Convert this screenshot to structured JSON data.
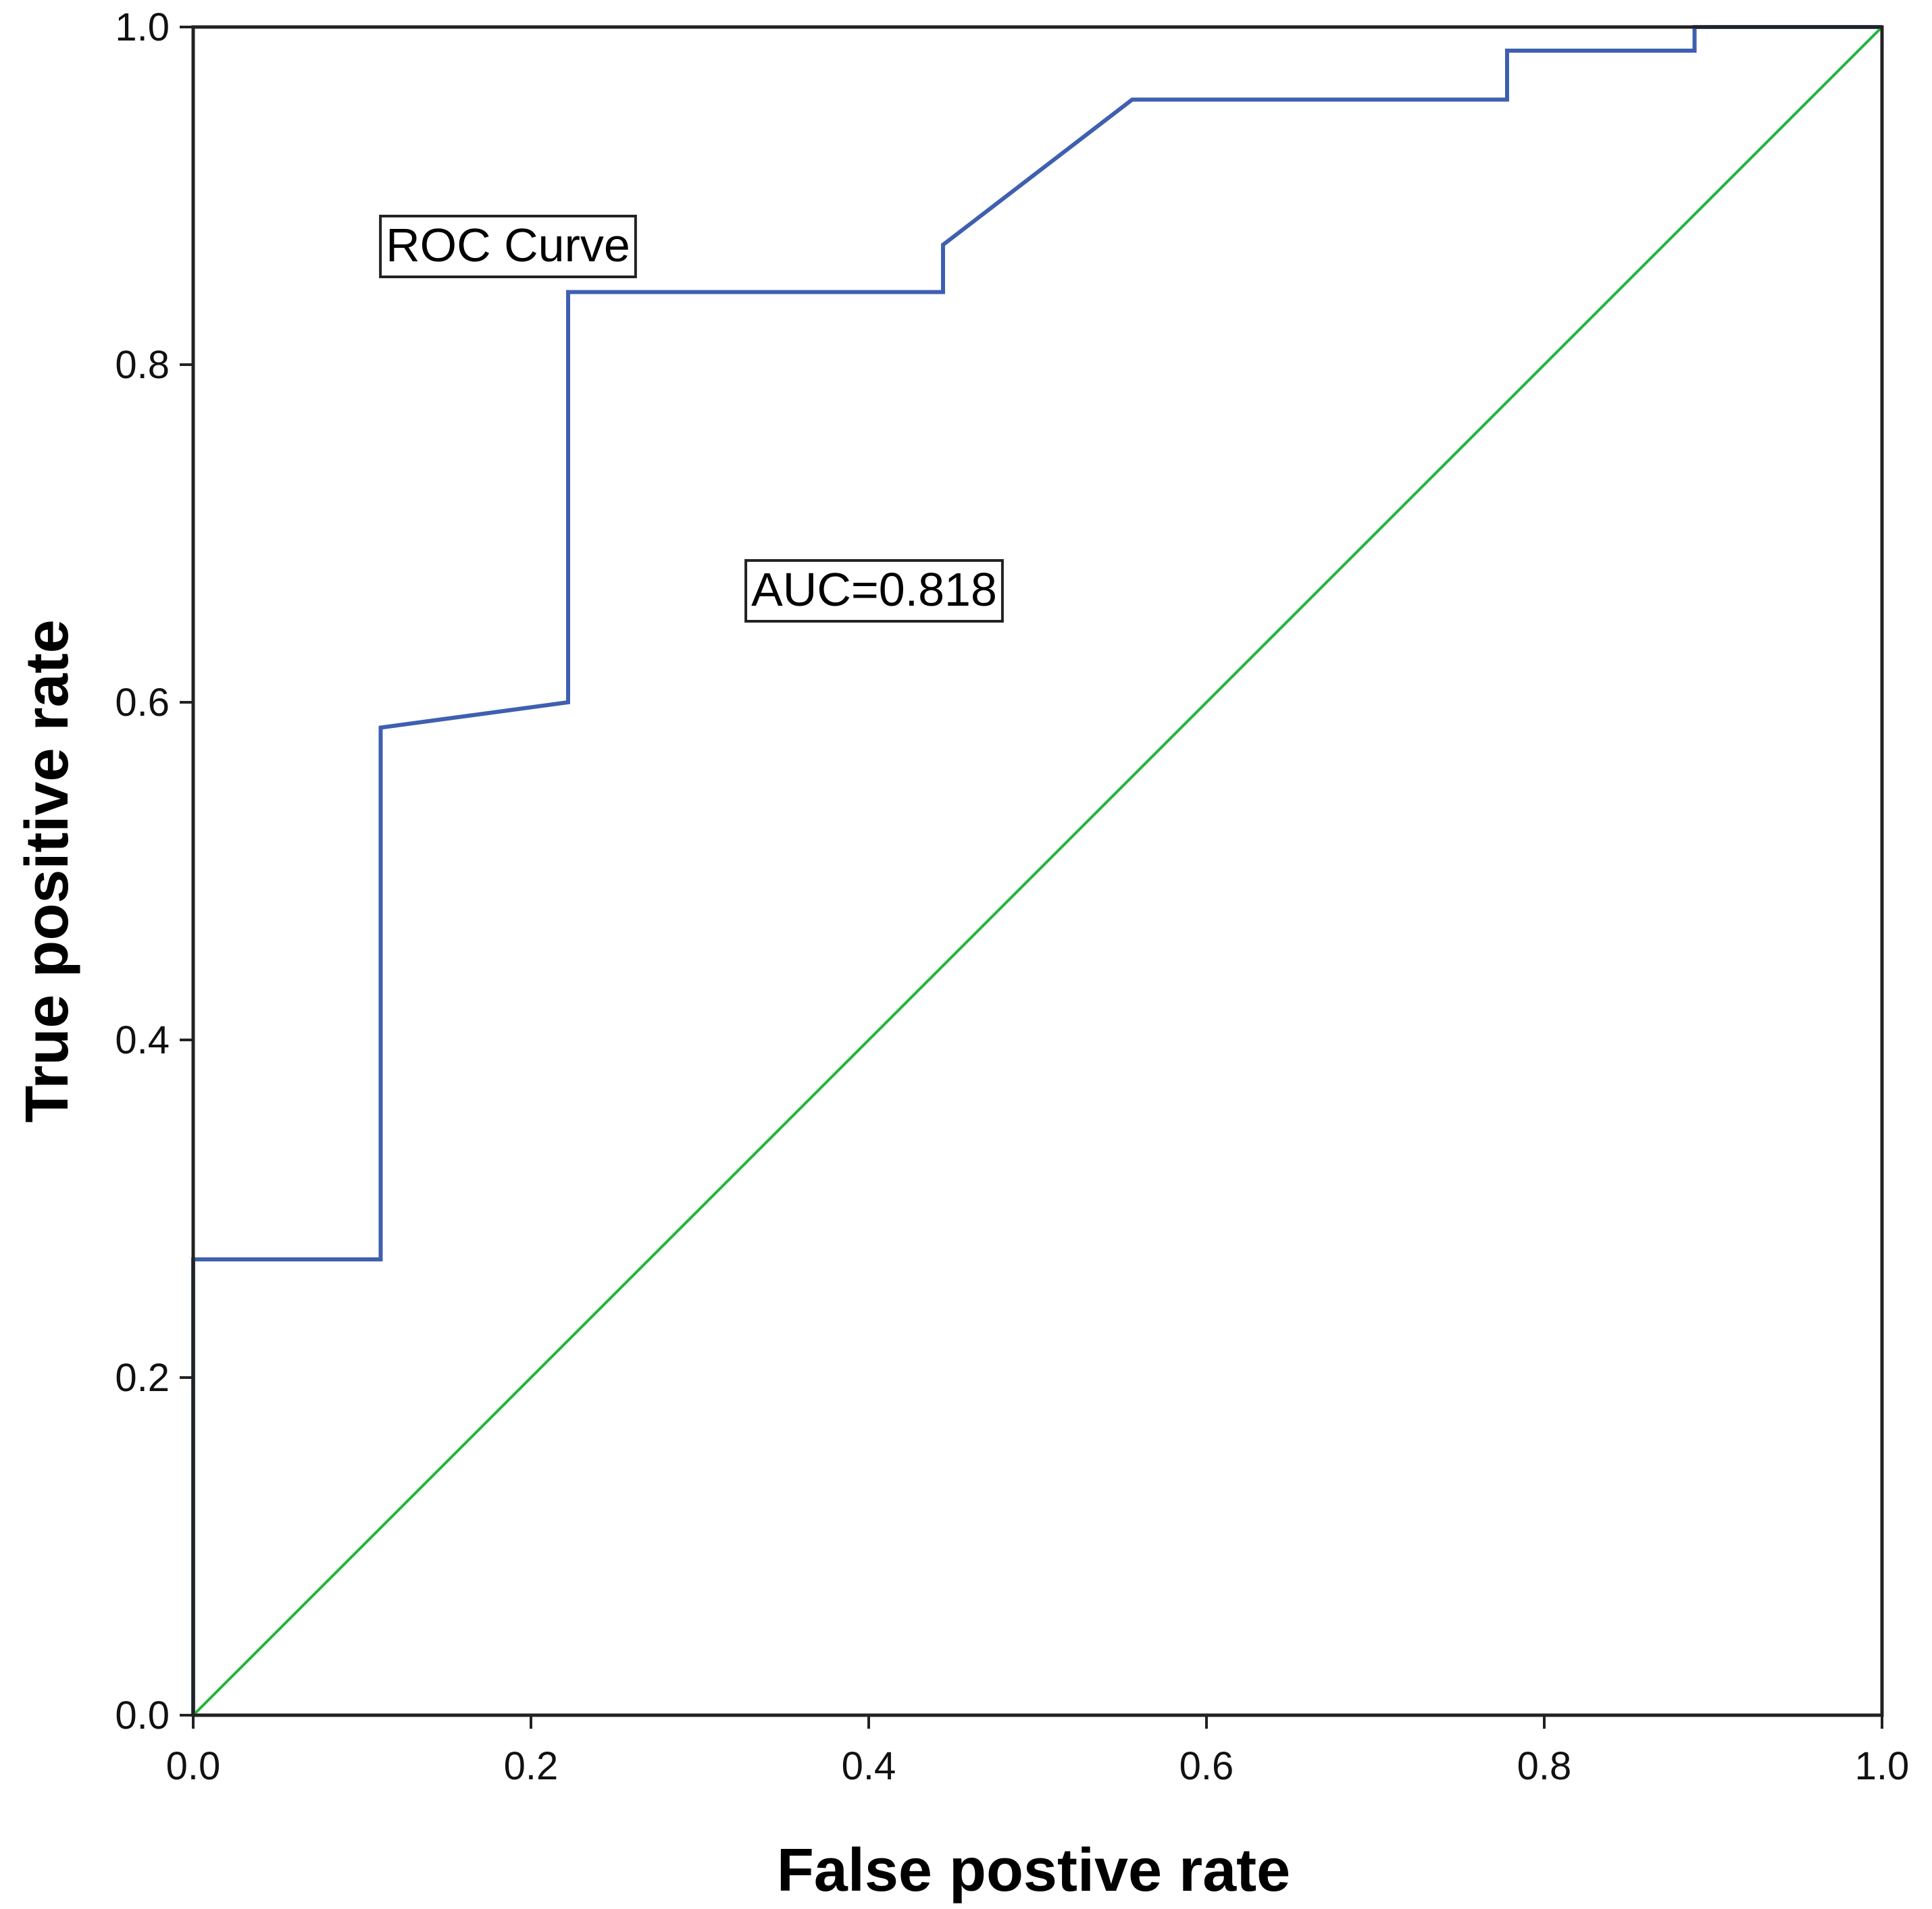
{
  "chart_data": {
    "type": "line",
    "title": "",
    "xlabel": "False postive rate",
    "ylabel": "True positive rate",
    "xlim": [
      0,
      1
    ],
    "ylim": [
      0,
      1
    ],
    "xticks": [
      "0.0",
      "0.2",
      "0.4",
      "0.6",
      "0.8",
      "1.0"
    ],
    "yticks": [
      "0.0",
      "0.2",
      "0.4",
      "0.6",
      "0.8",
      "1.0"
    ],
    "grid": false,
    "legend": "none",
    "annotations": [
      "ROC Curve",
      "AUC=0.818"
    ],
    "series": [
      {
        "color": "#3f5fb0",
        "points": [
          [
            0.0,
            0.0
          ],
          [
            0.0,
            0.27
          ],
          [
            0.111,
            0.27
          ],
          [
            0.111,
            0.585
          ],
          [
            0.222,
            0.6
          ],
          [
            0.222,
            0.843
          ],
          [
            0.444,
            0.843
          ],
          [
            0.444,
            0.871
          ],
          [
            0.556,
            0.957
          ],
          [
            0.778,
            0.957
          ],
          [
            0.778,
            0.986
          ],
          [
            0.889,
            0.986
          ],
          [
            0.889,
            1.0
          ],
          [
            1.0,
            1.0
          ]
        ]
      },
      {
        "color": "#22b53a",
        "points": [
          [
            0.0,
            0.0
          ],
          [
            1.0,
            1.0
          ]
        ]
      }
    ]
  }
}
